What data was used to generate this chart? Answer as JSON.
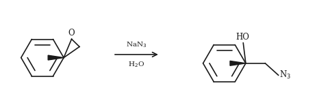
{
  "bg_color": "#ffffff",
  "line_color": "#1a1a1a",
  "text_color": "#1a1a1a",
  "arrow_label_top": "NaN$_3$",
  "arrow_label_bottom": "H$_2$O",
  "figsize": [
    4.63,
    1.54
  ],
  "dpi": 100
}
